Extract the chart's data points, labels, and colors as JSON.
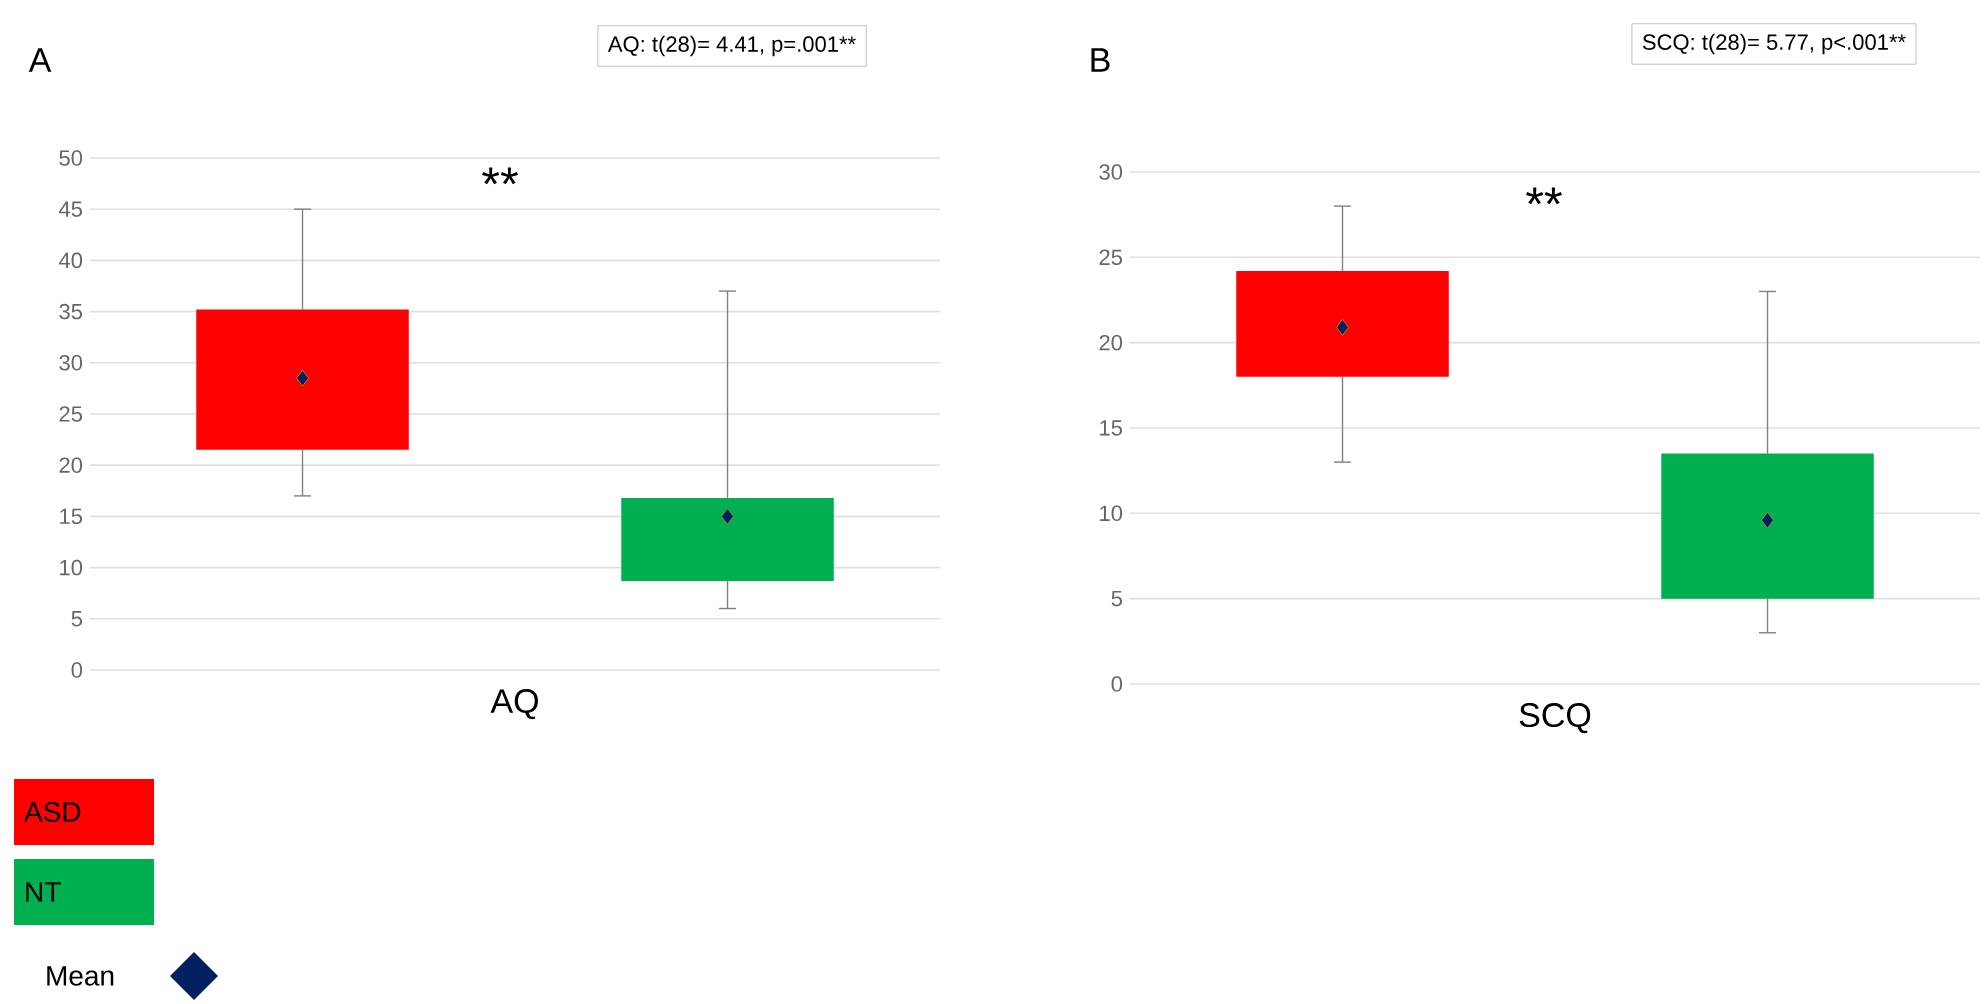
{
  "chart_data": [
    {
      "type": "box",
      "title": "A",
      "categories": [
        "AQ"
      ],
      "ylim": [
        0,
        50
      ],
      "yticks": [
        0,
        5,
        10,
        15,
        20,
        25,
        30,
        35,
        40,
        45,
        50
      ],
      "grid": "y",
      "legend": "bottom left",
      "marker": "diamond",
      "annotations": [
        "AQ: t(28)= 4.41, p=.001**",
        "**",
        "Mean"
      ],
      "series": [
        {
          "name": "ASD",
          "color": "#ff0000",
          "boxes": [
            {
              "low": 17,
              "q1": 21.5,
              "median": null,
              "q3": 35.2,
              "high": 45,
              "mean": 28.5
            }
          ]
        },
        {
          "name": "NT",
          "color": "#00b050",
          "boxes": [
            {
              "low": 6,
              "q1": 8.7,
              "median": null,
              "q3": 16.8,
              "high": 37,
              "mean": 15
            }
          ]
        }
      ]
    },
    {
      "type": "box",
      "title": "B",
      "categories": [
        "SCQ"
      ],
      "ylim": [
        0,
        30
      ],
      "yticks": [
        0,
        5,
        10,
        15,
        20,
        25,
        30
      ],
      "grid": "y",
      "marker": "diamond",
      "annotations": [
        "SCQ: t(28)= 5.77, p<.001**",
        "**"
      ],
      "series": [
        {
          "color": "#ff0000",
          "boxes": [
            {
              "low": 13,
              "q1": 18,
              "median": null,
              "q3": 24.2,
              "high": 28,
              "mean": 20.9
            }
          ]
        },
        {
          "color": "#00b050",
          "boxes": [
            {
              "low": 3,
              "q1": 5,
              "median": null,
              "q3": 13.5,
              "high": 23,
              "mean": 9.6
            }
          ]
        }
      ]
    }
  ]
}
